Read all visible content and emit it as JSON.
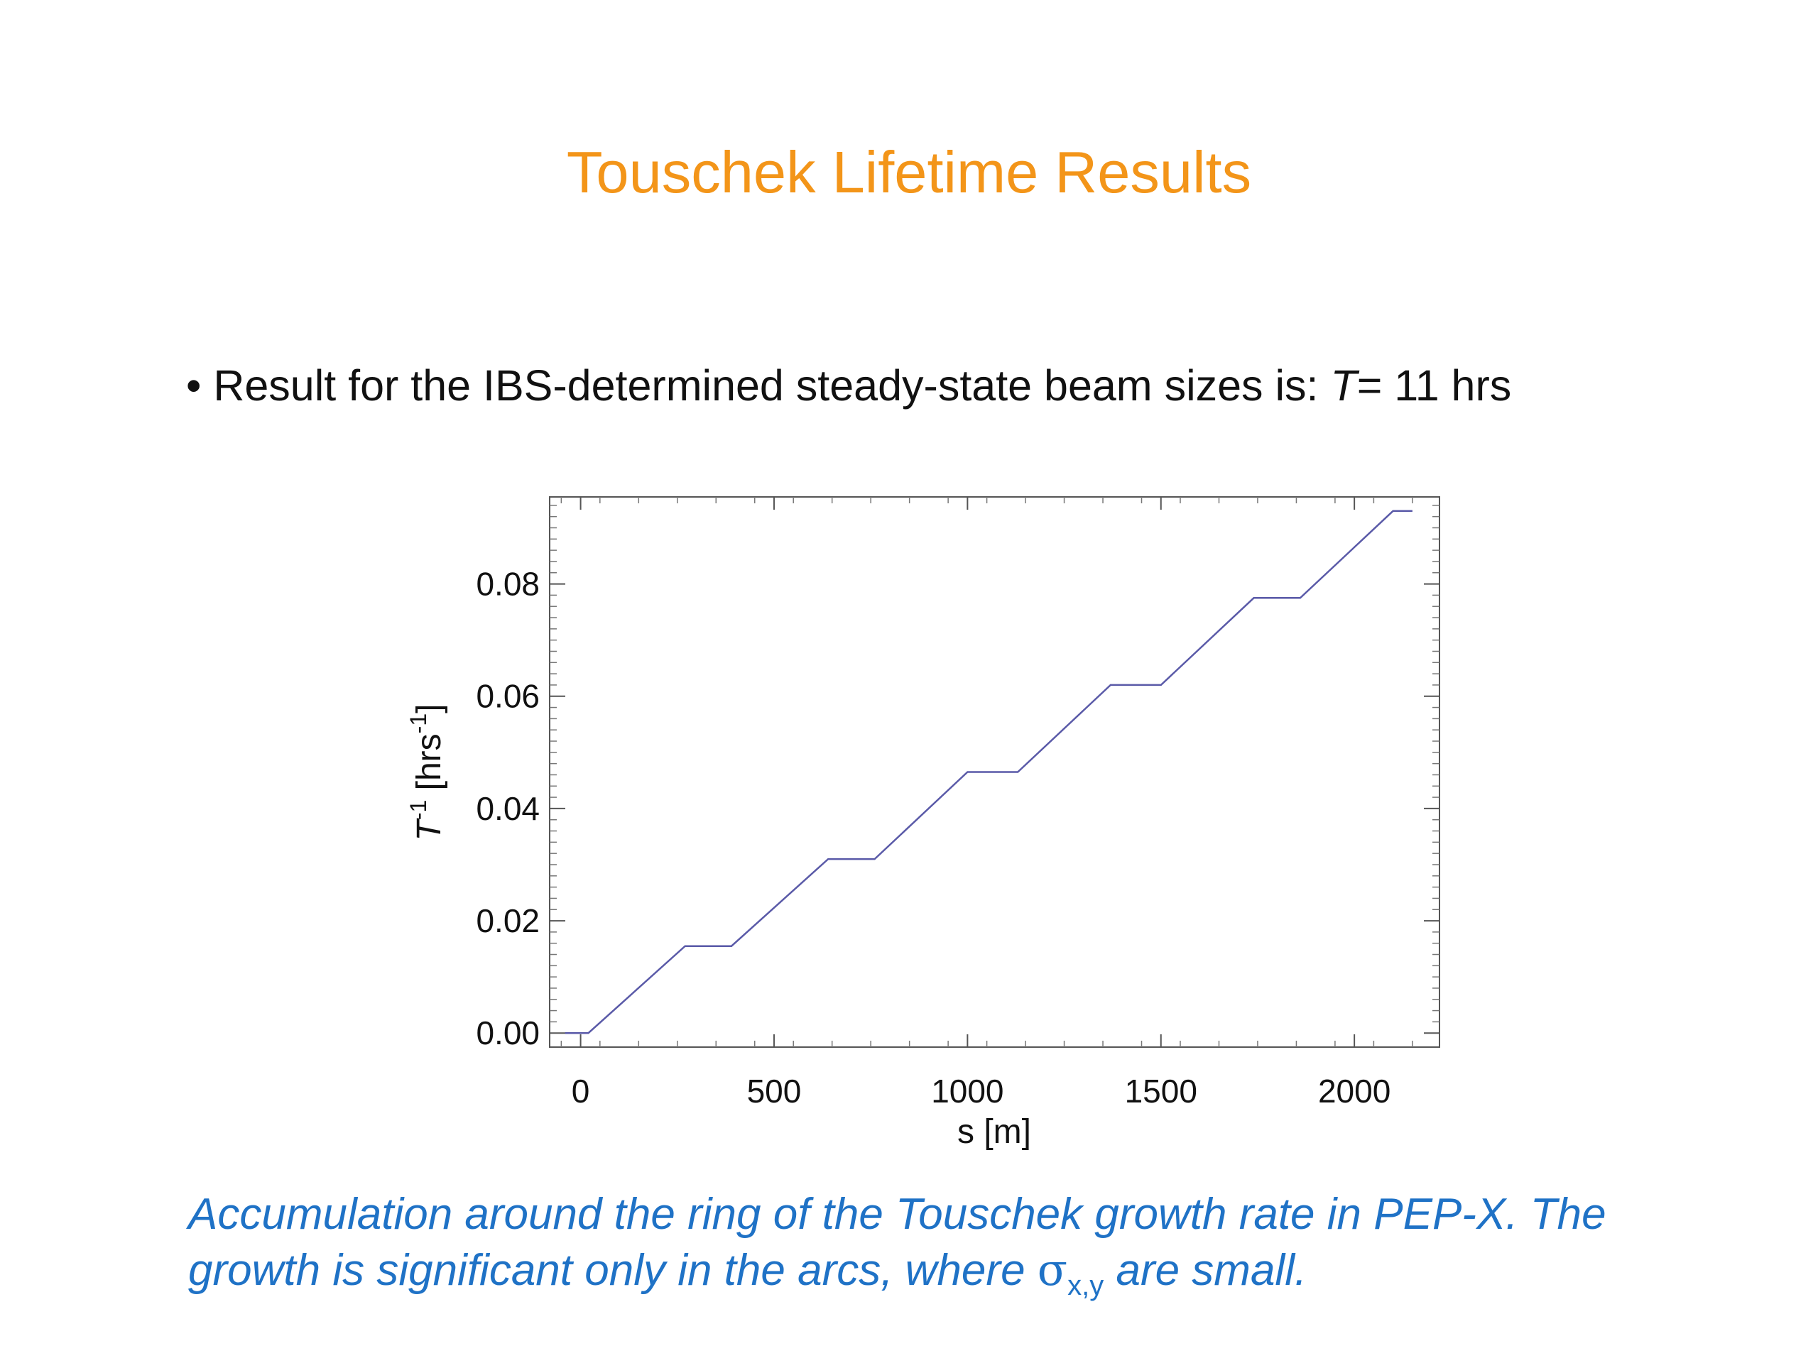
{
  "slide": {
    "title": "Touschek Lifetime Results",
    "bullet": {
      "marker": "•",
      "text": "Result for the IBS-determined steady-state beam sizes is:",
      "var": "T",
      "value": "= 11 hrs"
    },
    "caption": {
      "line1": "Accumulation around the ring of the Touschek growth rate in PEP-X. The",
      "line2_pre": "growth is significant only in the arcs, where",
      "sigma": "σ",
      "sub": "x,y",
      "line2_post": "are small."
    }
  },
  "chart_data": {
    "type": "line",
    "xlabel": "s [m]",
    "ylabel": {
      "var": "T",
      "sup": "-1",
      "pre": " [hrs",
      "sup2": "-1",
      "post": "]"
    },
    "xlim": [
      -80,
      2220
    ],
    "ylim": [
      -0.0025,
      0.0955
    ],
    "xticks": [
      0,
      500,
      1000,
      1500,
      2000
    ],
    "xtick_labels": [
      "0",
      "500",
      "1000",
      "1500",
      "2000"
    ],
    "yticks": [
      0.0,
      0.02,
      0.04,
      0.06,
      0.08
    ],
    "ytick_labels": [
      "0.00",
      "0.02",
      "0.04",
      "0.06",
      "0.08"
    ],
    "line_color": "#5a5aa8",
    "series": [
      {
        "x": [
          -40,
          20,
          270,
          390,
          640,
          760,
          1000,
          1130,
          1370,
          1500,
          1740,
          1860,
          2100,
          2150
        ],
        "y": [
          0.0,
          0.0,
          0.0155,
          0.0155,
          0.031,
          0.031,
          0.0465,
          0.0465,
          0.062,
          0.062,
          0.0775,
          0.0775,
          0.093,
          0.093
        ]
      }
    ]
  }
}
